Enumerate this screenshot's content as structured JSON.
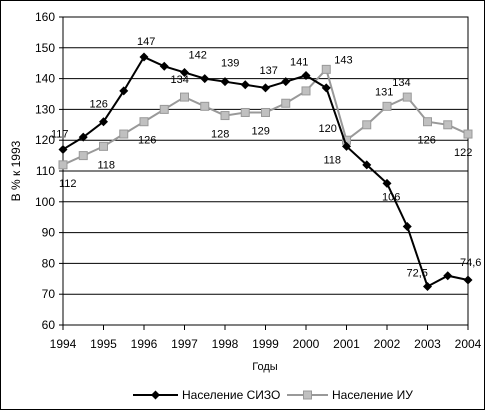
{
  "chart_data": {
    "type": "line",
    "ylabel": "В % к 1993",
    "xlabel": "Годы",
    "ylim": [
      60,
      160
    ],
    "yticks": [
      "60",
      "70",
      "80",
      "90",
      "100",
      "110",
      "120",
      "130",
      "140",
      "150",
      "160"
    ],
    "xticks": [
      "1994",
      "1995",
      "1996",
      "1997",
      "1998",
      "1999",
      "2000",
      "2001",
      "2002",
      "2003",
      "2004"
    ],
    "grid": true,
    "legend_position": "bottom",
    "series": [
      {
        "name": "Население СИЗО",
        "color": "#000000",
        "marker": "diamond",
        "x": [
          1994,
          1994.5,
          1995,
          1995.5,
          1996,
          1996.5,
          1997,
          1997.5,
          1998,
          1998.5,
          1999,
          1999.5,
          2000,
          2000.5,
          2001,
          2001.5,
          2002,
          2002.5,
          2003,
          2003.5,
          2004
        ],
        "values": [
          117,
          121,
          126,
          136,
          147,
          144,
          142,
          140,
          139,
          138,
          137,
          139,
          141,
          137,
          118,
          112,
          106,
          92,
          72.5,
          76,
          74.6
        ],
        "labels": [
          {
            "index": 0,
            "text": "117"
          },
          {
            "index": 2,
            "text": "126"
          },
          {
            "index": 4,
            "text": "147"
          },
          {
            "index": 6,
            "text": "142"
          },
          {
            "index": 8,
            "text": "139"
          },
          {
            "index": 10,
            "text": "137"
          },
          {
            "index": 12,
            "text": "141"
          },
          {
            "index": 14,
            "text": "118"
          },
          {
            "index": 16,
            "text": "106"
          },
          {
            "index": 18,
            "text": "72,5"
          },
          {
            "index": 20,
            "text": "74,6"
          }
        ]
      },
      {
        "name": "Население ИУ",
        "color": "#999999",
        "marker": "square",
        "x": [
          1994,
          1994.5,
          1995,
          1995.5,
          1996,
          1996.5,
          1997,
          1997.5,
          1998,
          1998.5,
          1999,
          1999.5,
          2000,
          2000.5,
          2001,
          2001.5,
          2002,
          2002.5,
          2003,
          2003.5,
          2004
        ],
        "values": [
          112,
          115,
          118,
          122,
          126,
          130,
          134,
          131,
          128,
          129,
          129,
          132,
          136,
          143,
          120,
          125,
          131,
          134,
          126,
          125,
          122
        ],
        "labels": [
          {
            "index": 0,
            "text": "112"
          },
          {
            "index": 2,
            "text": "118"
          },
          {
            "index": 4,
            "text": "126"
          },
          {
            "index": 6,
            "text": "134"
          },
          {
            "index": 8,
            "text": "128"
          },
          {
            "index": 10,
            "text": "129"
          },
          {
            "index": 13,
            "text": "143"
          },
          {
            "index": 14,
            "text": "120"
          },
          {
            "index": 16,
            "text": "131"
          },
          {
            "index": 17,
            "text": "134"
          },
          {
            "index": 18,
            "text": "126"
          },
          {
            "index": 20,
            "text": "122"
          }
        ]
      }
    ]
  }
}
